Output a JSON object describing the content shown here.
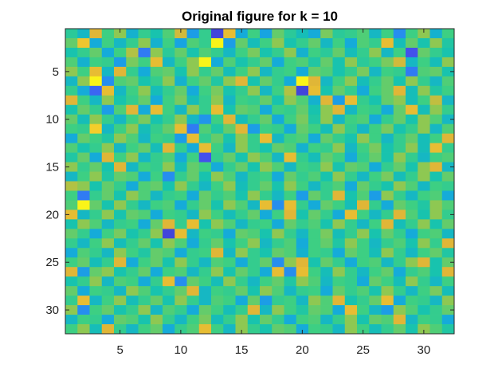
{
  "chart_data": {
    "type": "heatmap",
    "title": "Original figure for k = 10",
    "xlabel": "",
    "ylabel": "",
    "rows": 32,
    "cols": 32,
    "x_range": [
      0.5,
      32.5
    ],
    "y_range": [
      0.5,
      32.5
    ],
    "y_direction": "reversed",
    "x_ticks": [
      5,
      10,
      15,
      20,
      25,
      30
    ],
    "x_tick_labels": [
      "5",
      "10",
      "15",
      "20",
      "25",
      "30"
    ],
    "y_ticks": [
      5,
      10,
      15,
      20,
      25,
      30
    ],
    "y_tick_labels": [
      "5",
      "10",
      "15",
      "20",
      "25",
      "30"
    ],
    "grid": false,
    "colormap": "parula",
    "colormap_stops": [
      "#3e26a8",
      "#4455f2",
      "#2b85f3",
      "#15a7e0",
      "#16c2b0",
      "#3fd081",
      "#9cc74a",
      "#e2b637",
      "#fddb25",
      "#f9fb15"
    ],
    "value_range": [
      -1,
      1
    ],
    "values": [
      [
        0.0,
        -0.2,
        0.55,
        0.1,
        0.3,
        -0.25,
        0.05,
        -0.1,
        0.15,
        0.5,
        -0.4,
        0.05,
        -0.85,
        0.6,
        -0.3,
        0.1,
        -0.35,
        0.2,
        0.0,
        -0.15,
        -0.3,
        0.25,
        0.0,
        0.05,
        0.15,
        -0.2,
        0.1,
        -0.5,
        0.1,
        0.3,
        -0.25,
        0.1
      ],
      [
        0.2,
        0.65,
        -0.3,
        0.1,
        -0.2,
        0.05,
        0.3,
        -0.25,
        0.1,
        -0.35,
        0.15,
        0.05,
        0.95,
        -0.4,
        0.2,
        -0.15,
        0.1,
        0.3,
        -0.1,
        0.05,
        0.2,
        -0.2,
        0.1,
        -0.3,
        0.15,
        0.05,
        0.6,
        -0.15,
        0.2,
        -0.1,
        0.3,
        -0.05
      ],
      [
        -0.1,
        0.05,
        0.2,
        -0.3,
        0.1,
        0.4,
        -0.6,
        0.3,
        0.0,
        0.2,
        -0.1,
        0.15,
        0.05,
        -0.2,
        0.1,
        0.25,
        -0.1,
        0.05,
        0.3,
        -0.25,
        0.1,
        0.0,
        0.2,
        -0.15,
        0.05,
        0.3,
        -0.2,
        0.1,
        -0.8,
        0.2,
        0.05,
        -0.1
      ],
      [
        0.15,
        -0.25,
        0.1,
        0.05,
        -0.4,
        0.25,
        0.1,
        0.6,
        -0.2,
        0.1,
        0.3,
        0.95,
        -0.3,
        0.15,
        -0.1,
        0.05,
        0.2,
        -0.3,
        0.1,
        0.15,
        -0.05,
        0.2,
        -0.1,
        0.3,
        0.0,
        0.1,
        0.25,
        0.5,
        -0.2,
        0.1,
        -0.15,
        0.3
      ],
      [
        0.3,
        0.1,
        0.6,
        -0.2,
        0.55,
        0.05,
        -0.3,
        0.15,
        0.2,
        -0.1,
        0.3,
        0.05,
        0.2,
        -0.15,
        0.1,
        0.3,
        -0.2,
        0.05,
        0.1,
        -0.3,
        0.2,
        0.15,
        -0.1,
        0.05,
        0.25,
        -0.2,
        0.1,
        0.05,
        -0.6,
        0.15,
        0.2,
        -0.1
      ],
      [
        -0.2,
        0.3,
        0.95,
        -0.5,
        0.15,
        0.2,
        -0.1,
        0.05,
        0.3,
        -0.25,
        0.1,
        0.2,
        -0.05,
        0.3,
        0.55,
        -0.1,
        0.2,
        0.05,
        -0.3,
        0.95,
        0.55,
        -0.2,
        0.1,
        0.3,
        -0.15,
        0.05,
        0.2,
        -0.1,
        0.3,
        0.05,
        -0.2,
        0.15
      ],
      [
        0.05,
        -0.3,
        -0.7,
        0.6,
        -0.2,
        0.1,
        0.3,
        -0.15,
        0.05,
        0.2,
        -0.3,
        0.1,
        0.25,
        -0.1,
        0.05,
        0.3,
        -0.2,
        0.1,
        0.4,
        -0.85,
        0.6,
        -0.1,
        0.2,
        0.05,
        -0.3,
        0.1,
        0.2,
        0.55,
        -0.15,
        0.3,
        -0.05,
        0.1
      ],
      [
        0.55,
        0.1,
        -0.2,
        0.3,
        -0.1,
        0.05,
        0.2,
        -0.3,
        0.1,
        0.25,
        -0.15,
        0.05,
        0.3,
        -0.2,
        0.1,
        0.05,
        0.2,
        -0.1,
        0.3,
        0.15,
        -0.25,
        0.55,
        -0.4,
        0.6,
        0.05,
        -0.1,
        0.2,
        0.3,
        -0.15,
        0.1,
        0.45,
        -0.2
      ],
      [
        -0.1,
        0.2,
        0.05,
        -0.4,
        0.15,
        0.55,
        -0.3,
        0.6,
        0.1,
        -0.2,
        0.3,
        0.05,
        0.6,
        -0.1,
        0.2,
        0.15,
        -0.3,
        0.1,
        0.05,
        0.2,
        -0.1,
        0.3,
        0.55,
        -0.2,
        0.1,
        0.05,
        -0.3,
        0.2,
        0.6,
        -0.15,
        0.3,
        0.05
      ],
      [
        0.2,
        -0.15,
        0.3,
        0.05,
        -0.2,
        0.1,
        0.25,
        -0.1,
        0.05,
        0.3,
        -0.2,
        -0.45,
        0.1,
        0.55,
        -0.15,
        0.05,
        0.2,
        -0.3,
        0.1,
        0.25,
        -0.05,
        0.3,
        -0.2,
        0.1,
        0.15,
        -0.3,
        0.05,
        0.2,
        -0.1,
        0.3,
        0.15,
        -0.2
      ],
      [
        0.1,
        0.05,
        0.7,
        -0.2,
        0.1,
        0.3,
        -0.15,
        0.05,
        0.2,
        0.6,
        -0.6,
        0.15,
        -0.05,
        0.2,
        0.55,
        -0.4,
        0.1,
        0.05,
        -0.3,
        0.2,
        0.1,
        -0.15,
        0.3,
        0.05,
        -0.2,
        0.1,
        0.25,
        -0.1,
        0.05,
        0.3,
        -0.2,
        0.15
      ],
      [
        -0.3,
        0.2,
        0.1,
        -0.05,
        0.3,
        0.15,
        -0.2,
        0.1,
        0.05,
        -0.4,
        0.6,
        0.05,
        0.2,
        -0.1,
        0.3,
        0.05,
        0.6,
        -0.2,
        0.1,
        0.15,
        -0.3,
        0.2,
        0.05,
        -0.1,
        0.3,
        0.1,
        -0.2,
        0.05,
        0.2,
        -0.15,
        0.1,
        0.55
      ],
      [
        0.15,
        -0.1,
        0.05,
        0.3,
        -0.2,
        0.1,
        0.2,
        -0.15,
        0.55,
        0.05,
        -0.3,
        0.6,
        0.1,
        -0.2,
        0.3,
        0.05,
        -0.1,
        0.2,
        0.15,
        -0.25,
        0.1,
        0.05,
        0.3,
        -0.2,
        0.1,
        0.25,
        -0.1,
        0.05,
        0.3,
        -0.15,
        0.6,
        0.05
      ],
      [
        -0.05,
        0.2,
        -0.3,
        0.55,
        0.1,
        0.3,
        -0.2,
        0.05,
        0.15,
        -0.3,
        0.1,
        -0.8,
        0.05,
        0.2,
        -0.1,
        0.3,
        0.15,
        -0.2,
        0.6,
        0.05,
        -0.15,
        0.2,
        0.1,
        -0.3,
        0.05,
        0.2,
        -0.1,
        0.3,
        0.05,
        -0.2,
        0.1,
        0.15
      ],
      [
        0.3,
        0.05,
        0.2,
        -0.1,
        0.55,
        -0.2,
        0.1,
        0.05,
        0.3,
        -0.15,
        0.2,
        0.1,
        -0.3,
        0.05,
        0.2,
        -0.1,
        0.3,
        0.15,
        -0.2,
        0.1,
        0.05,
        0.3,
        -0.1,
        0.2,
        0.15,
        -0.3,
        0.05,
        0.2,
        -0.1,
        0.3,
        0.55,
        -0.2
      ],
      [
        -0.2,
        0.1,
        0.3,
        -0.05,
        0.2,
        0.15,
        -0.3,
        0.1,
        -0.5,
        0.05,
        0.2,
        -0.1,
        0.3,
        0.15,
        -0.2,
        0.05,
        0.1,
        -0.3,
        0.2,
        0.05,
        0.15,
        -0.1,
        0.3,
        0.05,
        -0.2,
        0.1,
        0.25,
        -0.15,
        0.05,
        0.3,
        -0.1,
        0.2
      ],
      [
        0.4,
        0.3,
        -0.1,
        0.2,
        0.05,
        -0.3,
        0.15,
        0.2,
        -0.1,
        0.3,
        0.05,
        -0.2,
        0.1,
        0.3,
        -0.15,
        0.05,
        0.2,
        -0.1,
        0.3,
        0.1,
        -0.2,
        0.05,
        0.15,
        -0.3,
        0.2,
        0.05,
        -0.1,
        0.3,
        0.15,
        -0.2,
        0.1,
        0.05
      ],
      [
        0.1,
        -0.6,
        0.05,
        0.2,
        -0.1,
        0.3,
        0.15,
        -0.2,
        0.05,
        0.1,
        -0.3,
        0.2,
        0.05,
        0.15,
        -0.1,
        0.3,
        0.05,
        -0.2,
        0.1,
        -0.4,
        0.2,
        0.05,
        0.55,
        -0.1,
        0.15,
        -0.4,
        0.3,
        0.05,
        -0.2,
        0.1,
        0.15,
        -0.3
      ],
      [
        0.15,
        0.95,
        0.2,
        -0.1,
        0.3,
        0.05,
        -0.2,
        0.1,
        0.15,
        -0.3,
        0.05,
        0.2,
        -0.1,
        0.3,
        0.15,
        -0.2,
        0.6,
        -0.5,
        0.6,
        0.05,
        -0.3,
        0.2,
        0.1,
        -0.15,
        0.55,
        0.05,
        -0.3,
        0.2,
        0.1,
        -0.05,
        0.3,
        0.15
      ],
      [
        0.6,
        -0.2,
        0.05,
        0.3,
        -0.1,
        0.2,
        0.15,
        -0.3,
        0.1,
        0.05,
        -0.2,
        0.3,
        0.1,
        -0.15,
        0.05,
        0.2,
        -0.3,
        0.1,
        0.55,
        -0.1,
        0.2,
        0.05,
        -0.3,
        0.6,
        0.1,
        -0.2,
        0.05,
        0.55,
        0.15,
        -0.1,
        0.3,
        0.05
      ],
      [
        -0.1,
        0.3,
        0.15,
        -0.2,
        0.05,
        0.1,
        -0.3,
        0.2,
        0.55,
        0.05,
        0.6,
        -0.1,
        0.3,
        0.15,
        -0.2,
        0.05,
        0.1,
        -0.3,
        0.2,
        0.05,
        0.15,
        -0.1,
        0.3,
        0.05,
        -0.2,
        0.1,
        0.55,
        -0.15,
        0.05,
        0.3,
        -0.1,
        0.2
      ],
      [
        0.2,
        0.05,
        -0.3,
        0.1,
        0.25,
        -0.1,
        0.05,
        0.3,
        -0.85,
        0.6,
        -0.2,
        0.1,
        0.05,
        -0.3,
        0.2,
        0.15,
        -0.1,
        0.3,
        0.05,
        -0.2,
        0.1,
        0.25,
        -0.15,
        0.05,
        0.3,
        -0.1,
        0.2,
        0.05,
        -0.3,
        0.1,
        0.15,
        -0.2
      ],
      [
        0.05,
        -0.2,
        0.1,
        0.3,
        -0.15,
        0.05,
        0.2,
        -0.1,
        0.3,
        0.15,
        -0.3,
        0.05,
        0.2,
        -0.1,
        0.1,
        0.3,
        -0.2,
        0.05,
        0.15,
        -0.3,
        0.1,
        0.2,
        -0.05,
        0.3,
        0.1,
        -0.2,
        0.05,
        0.15,
        -0.1,
        0.3,
        0.05,
        0.55
      ],
      [
        -0.3,
        0.15,
        0.05,
        -0.2,
        0.3,
        0.1,
        -0.05,
        0.2,
        0.15,
        -0.3,
        0.05,
        0.1,
        0.55,
        -0.2,
        0.3,
        0.05,
        -0.1,
        0.2,
        0.15,
        -0.25,
        0.1,
        0.05,
        -0.3,
        0.2,
        0.1,
        -0.15,
        0.3,
        0.05,
        -0.2,
        0.1,
        0.2,
        -0.05
      ],
      [
        0.1,
        0.2,
        -0.15,
        0.05,
        0.55,
        -0.3,
        0.1,
        0.2,
        -0.1,
        0.3,
        0.05,
        -0.2,
        0.15,
        0.1,
        -0.3,
        0.05,
        0.2,
        -0.5,
        0.3,
        0.55,
        -0.1,
        0.2,
        0.05,
        -0.3,
        0.1,
        0.15,
        -0.2,
        0.05,
        0.3,
        0.55,
        -0.1,
        0.2
      ],
      [
        0.55,
        -0.4,
        0.2,
        0.3,
        -0.1,
        0.05,
        0.2,
        -0.3,
        0.1,
        0.15,
        -0.2,
        0.05,
        0.3,
        -0.1,
        0.2,
        0.05,
        -0.3,
        0.6,
        -0.5,
        0.6,
        0.1,
        -0.15,
        0.3,
        0.05,
        -0.2,
        0.1,
        0.2,
        -0.3,
        0.05,
        0.15,
        -0.1,
        0.55
      ],
      [
        -0.1,
        0.05,
        0.3,
        -0.2,
        0.15,
        0.1,
        -0.3,
        0.05,
        0.6,
        -0.5,
        0.2,
        0.1,
        -0.15,
        0.3,
        0.05,
        -0.2,
        0.1,
        0.2,
        -0.05,
        0.3,
        0.15,
        -0.2,
        0.1,
        0.05,
        -0.3,
        0.2,
        0.1,
        -0.15,
        0.3,
        0.05,
        -0.2,
        0.1
      ],
      [
        0.2,
        -0.3,
        0.1,
        0.05,
        -0.2,
        0.3,
        0.15,
        -0.1,
        0.05,
        0.2,
        0.55,
        -0.2,
        0.1,
        0.05,
        0.2,
        -0.1,
        0.3,
        0.15,
        -0.2,
        0.05,
        0.1,
        -0.3,
        0.2,
        0.05,
        0.15,
        -0.1,
        0.3,
        0.05,
        -0.2,
        0.1,
        0.25,
        -0.15
      ],
      [
        0.05,
        0.6,
        -0.2,
        0.1,
        0.3,
        -0.15,
        0.05,
        0.2,
        -0.1,
        0.3,
        0.05,
        -0.2,
        0.15,
        0.1,
        -0.3,
        0.2,
        -0.4,
        0.05,
        0.1,
        -0.2,
        0.3,
        0.15,
        0.55,
        -0.1,
        0.05,
        0.2,
        0.6,
        -0.3,
        0.1,
        0.05,
        -0.2,
        0.3
      ],
      [
        0.3,
        -0.5,
        0.1,
        0.2,
        -0.1,
        0.05,
        0.3,
        -0.2,
        0.15,
        0.05,
        -0.3,
        0.2,
        0.1,
        -0.15,
        0.05,
        0.55,
        -0.2,
        0.3,
        0.1,
        -0.05,
        0.2,
        0.15,
        -0.3,
        0.6,
        0.1,
        -0.2,
        -0.4,
        0.3,
        0.15,
        -0.1,
        0.05,
        0.2
      ],
      [
        -0.2,
        0.1,
        0.05,
        -0.3,
        0.2,
        0.15,
        -0.1,
        0.3,
        0.05,
        -0.2,
        0.1,
        0.25,
        -0.15,
        0.05,
        0.3,
        -0.1,
        0.2,
        0.05,
        -0.3,
        0.1,
        0.15,
        -0.2,
        0.05,
        0.3,
        -0.1,
        0.2,
        0.15,
        0.55,
        -0.2,
        0.1,
        0.05,
        -0.3
      ],
      [
        0.1,
        0.3,
        -0.15,
        0.55,
        0.05,
        -0.2,
        0.1,
        0.2,
        -0.3,
        0.05,
        0.15,
        0.6,
        0.1,
        -0.2,
        0.3,
        0.05,
        -0.1,
        0.2,
        0.15,
        -0.3,
        0.1,
        0.05,
        -0.2,
        0.3,
        0.1,
        -0.15,
        0.05,
        0.2,
        -0.1,
        0.3,
        0.15,
        -0.05
      ]
    ]
  }
}
